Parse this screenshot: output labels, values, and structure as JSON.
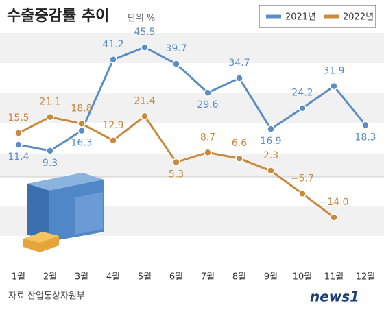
{
  "chart_data": {
    "type": "line",
    "title": "수출증감률 추이",
    "unit": "단위 %",
    "categories": [
      "1월",
      "2월",
      "3월",
      "4월",
      "5월",
      "6월",
      "7월",
      "8월",
      "9월",
      "10월",
      "11월",
      "12월"
    ],
    "series": [
      {
        "name": "2021년",
        "color": "#5b8ec4",
        "values": [
          11.4,
          9.3,
          16.3,
          41.2,
          45.5,
          39.7,
          29.6,
          34.7,
          16.9,
          24.2,
          31.9,
          18.3
        ]
      },
      {
        "name": "2022년",
        "color": "#c98a3e",
        "values": [
          15.5,
          21.1,
          18.8,
          12.9,
          21.4,
          5.3,
          8.7,
          6.6,
          2.3,
          -5.7,
          -14.0,
          null
        ],
        "value_labels": [
          "15.5",
          "21.1",
          "18.8",
          "12.9",
          "21.4",
          "5.3",
          "8.7",
          "6.6",
          "2.3",
          "−5.7",
          "−14.0",
          null
        ]
      }
    ],
    "ylim": [
      -20,
      50
    ],
    "source": "자료 산업통상자원부",
    "logo": "news1"
  }
}
